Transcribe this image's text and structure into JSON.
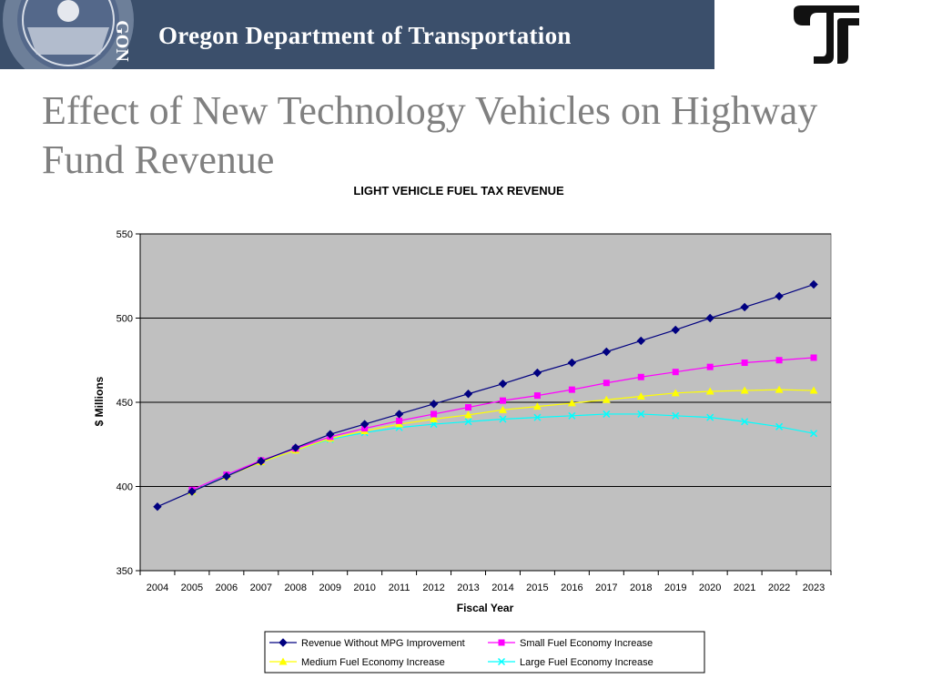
{
  "header": {
    "org_name": "Oregon Department of Transportation",
    "seal_text": "GON"
  },
  "slide": {
    "title": "Effect of New Technology Vehicles on Highway Fund Revenue"
  },
  "colors": {
    "banner": "#3b4f6b",
    "plot_background": "#c0c0c0",
    "series": [
      "#000080",
      "#ff00ff",
      "#ffff00",
      "#00ffff"
    ]
  },
  "chart_data": {
    "type": "line",
    "title": "LIGHT VEHICLE FUEL TAX REVENUE",
    "xlabel": "Fiscal Year",
    "ylabel": "$ Millions",
    "ylim": [
      350,
      550
    ],
    "yticks": [
      350,
      400,
      450,
      500,
      550
    ],
    "grid": "horizontal major",
    "legend": "bottom",
    "categories": [
      "2004",
      "2005",
      "2006",
      "2007",
      "2008",
      "2009",
      "2010",
      "2011",
      "2012",
      "2013",
      "2014",
      "2015",
      "2016",
      "2017",
      "2018",
      "2019",
      "2020",
      "2021",
      "2022",
      "2023"
    ],
    "series": [
      {
        "name": "Revenue Without MPG Improvement",
        "marker": "diamond",
        "values": [
          388,
          397,
          406,
          415,
          423,
          431,
          437,
          443,
          449,
          455,
          461,
          467.5,
          473.5,
          480,
          486.5,
          493,
          500,
          506.5,
          513,
          520
        ]
      },
      {
        "name": "Small Fuel Economy Increase",
        "marker": "square",
        "values": [
          null,
          398,
          407,
          415.5,
          422.5,
          429.5,
          434.5,
          439,
          443,
          447,
          451,
          454,
          457.5,
          461.5,
          465,
          468,
          471,
          473.5,
          475,
          476.5
        ]
      },
      {
        "name": "Medium Fuel Economy Increase",
        "marker": "triangle",
        "values": [
          null,
          397,
          406,
          414.5,
          421.5,
          428.5,
          433,
          437,
          440,
          442.5,
          445.5,
          447.5,
          449.5,
          451.5,
          453.5,
          455.5,
          456.5,
          457,
          457.5,
          457
        ]
      },
      {
        "name": "Large Fuel Economy Increase",
        "marker": "x",
        "values": [
          null,
          397,
          406.5,
          414.5,
          421.5,
          428,
          432,
          435,
          437,
          438.5,
          440,
          441,
          442,
          443,
          443,
          442,
          441,
          438.5,
          435.5,
          431.5
        ]
      }
    ]
  }
}
